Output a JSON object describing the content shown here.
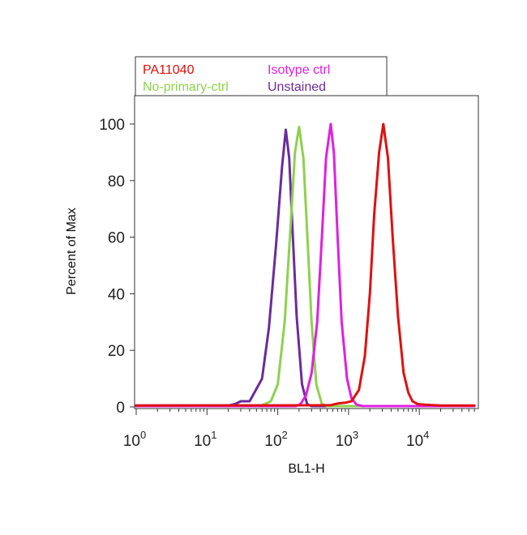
{
  "chart_data": {
    "type": "line",
    "title": "",
    "xlabel": "BL1-H",
    "ylabel": "Percent of Max",
    "x_scale": "log",
    "xlim": [
      1,
      60000
    ],
    "ylim": [
      0,
      110
    ],
    "x_ticks": [
      {
        "base": "10",
        "exp": "0",
        "value": 1
      },
      {
        "base": "10",
        "exp": "1",
        "value": 10
      },
      {
        "base": "10",
        "exp": "2",
        "value": 100
      },
      {
        "base": "10",
        "exp": "3",
        "value": 1000
      },
      {
        "base": "10",
        "exp": "4",
        "value": 10000
      }
    ],
    "y_ticks": [
      "0",
      "20",
      "40",
      "60",
      "80",
      "100"
    ],
    "grid": false,
    "legend_position": "top",
    "series": [
      {
        "name": "Unstained",
        "color": "#6a2c9c",
        "x": [
          1,
          20,
          25,
          30,
          40,
          60,
          75,
          95,
          115,
          130,
          145,
          160,
          185,
          220,
          260,
          300,
          60000
        ],
        "y": [
          0.5,
          0.5,
          1,
          2,
          2,
          10,
          28,
          58,
          85,
          98,
          88,
          65,
          32,
          8,
          1,
          0.3,
          0.3
        ]
      },
      {
        "name": "No-primary-ctrl",
        "color": "#8fd14f",
        "x": [
          1,
          45,
          60,
          80,
          100,
          125,
          150,
          175,
          200,
          230,
          260,
          300,
          350,
          420,
          500,
          60000
        ],
        "y": [
          0.3,
          0.3,
          0.6,
          2,
          8,
          30,
          62,
          90,
          99,
          88,
          62,
          30,
          8,
          1,
          0.3,
          0.3
        ]
      },
      {
        "name": "Isotype ctrl",
        "color": "#e020e0",
        "x": [
          1,
          180,
          210,
          250,
          300,
          360,
          420,
          480,
          560,
          620,
          700,
          800,
          950,
          1100,
          1300,
          1600,
          60000
        ],
        "y": [
          0.3,
          0.3,
          1,
          4,
          12,
          30,
          60,
          88,
          100,
          90,
          60,
          30,
          10,
          3,
          0.8,
          0.3,
          0.3
        ]
      },
      {
        "name": "PA11040",
        "color": "#e01010",
        "x": [
          1,
          550,
          700,
          900,
          1100,
          1400,
          1700,
          2000,
          2300,
          2700,
          3100,
          3600,
          4200,
          5000,
          6000,
          7000,
          8000,
          9500,
          12000,
          20000,
          60000
        ],
        "y": [
          0.5,
          0.6,
          1.2,
          1.5,
          2,
          6,
          18,
          40,
          68,
          90,
          100,
          88,
          60,
          32,
          12,
          5,
          2,
          1,
          0.8,
          0.5,
          0.5
        ]
      }
    ],
    "legend": [
      {
        "label": "PA11040",
        "color": "#e01010"
      },
      {
        "label": "Isotype ctrl",
        "color": "#e020e0"
      },
      {
        "label": "No-primary-ctrl",
        "color": "#8fd14f"
      },
      {
        "label": "Unstained",
        "color": "#6a2c9c"
      }
    ]
  }
}
